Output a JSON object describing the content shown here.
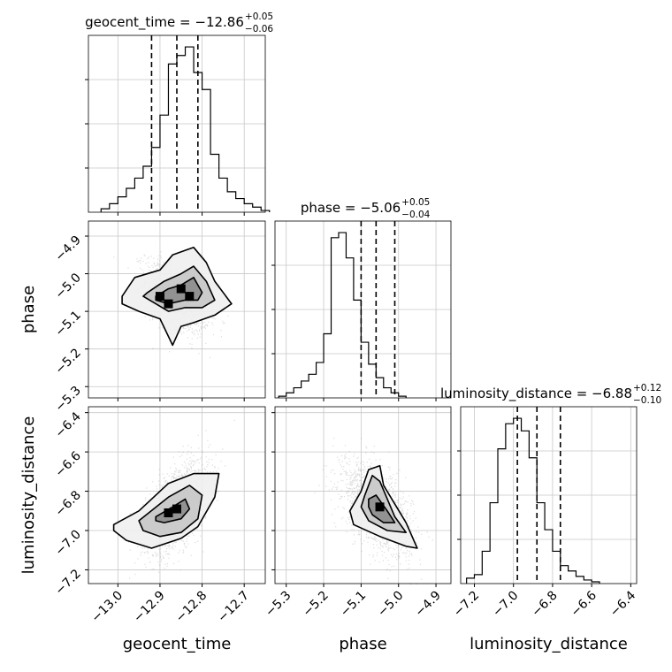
{
  "chart_data": {
    "type": "corner",
    "parameters": [
      {
        "name": "geocent_time",
        "range": [
          -13.07,
          -12.65
        ],
        "ticks": [
          -13.0,
          -12.9,
          -12.8,
          -12.7
        ],
        "tick_labels": [
          "−13.0",
          "−12.9",
          "−12.8",
          "−12.7"
        ]
      },
      {
        "name": "phase",
        "range": [
          -5.33,
          -4.86
        ],
        "ticks": [
          -5.3,
          -5.2,
          -5.1,
          -5.0,
          -4.9
        ],
        "tick_labels": [
          "−5.3",
          "−5.2",
          "−5.1",
          "−5.0",
          "−4.9"
        ]
      },
      {
        "name": "luminosity_distance",
        "range": [
          -7.27,
          -6.37
        ],
        "ticks": [
          -7.2,
          -7.0,
          -6.8,
          -6.6,
          -6.4
        ],
        "tick_labels": [
          "−7.2",
          "−7.0",
          "−6.8",
          "−6.6",
          "−6.4"
        ]
      }
    ],
    "titles": [
      {
        "main": "geocent_time = −12.86",
        "sup": "+0.05",
        "sub": "−0.06"
      },
      {
        "main": "phase = −5.06",
        "sup": "+0.05",
        "sub": "−0.04"
      },
      {
        "main": "luminosity_distance = −6.88",
        "sup": "+0.12",
        "sub": "−0.10"
      }
    ],
    "quantiles": [
      [
        -12.92,
        -12.86,
        -12.81
      ],
      [
        -5.1,
        -5.06,
        -5.01
      ],
      [
        -6.98,
        -6.88,
        -6.76
      ]
    ],
    "histograms": [
      {
        "bin_start": -13.04,
        "bin_width": 0.02,
        "counts": [
          2,
          5,
          9,
          14,
          20,
          27,
          38,
          57,
          87,
          92,
          97,
          82,
          72,
          34,
          20,
          12,
          8,
          5,
          3,
          1
        ]
      },
      {
        "bin_start": -5.32,
        "bin_width": 0.02,
        "counts": [
          1,
          3,
          6,
          10,
          14,
          21,
          38,
          95,
          98,
          83,
          58,
          33,
          20,
          12,
          6,
          3,
          1
        ]
      },
      {
        "bin_start": -7.24,
        "bin_width": 0.04,
        "counts": [
          3,
          5,
          18,
          45,
          75,
          89,
          92,
          85,
          70,
          45,
          30,
          18,
          10,
          7,
          4,
          2,
          1
        ]
      }
    ],
    "scatter_shape": [
      {
        "pair": [
          0,
          1
        ],
        "cov": [
          [
            0.0014,
            -0.0008
          ],
          [
            -0.0008,
            0.0021
          ]
        ]
      },
      {
        "pair": [
          0,
          2
        ],
        "cov": [
          [
            0.0014,
            0.0024
          ],
          [
            0.0024,
            0.0135
          ]
        ]
      },
      {
        "pair": [
          1,
          2
        ],
        "cov": [
          [
            0.0021,
            -0.0028
          ],
          [
            -0.0028,
            0.0135
          ]
        ]
      }
    ],
    "contours": [
      {
        "pair": [
          0,
          1
        ],
        "levels": [
          [
            [
              -12.99,
              -5.06
            ],
            [
              -12.96,
              -5.01
            ],
            [
              -12.9,
              -4.99
            ],
            [
              -12.87,
              -4.95
            ],
            [
              -12.82,
              -4.93
            ],
            [
              -12.79,
              -4.97
            ],
            [
              -12.77,
              -5.02
            ],
            [
              -12.73,
              -5.08
            ],
            [
              -12.77,
              -5.11
            ],
            [
              -12.82,
              -5.13
            ],
            [
              -12.85,
              -5.14
            ],
            [
              -12.87,
              -5.19
            ],
            [
              -12.9,
              -5.12
            ],
            [
              -12.95,
              -5.1
            ],
            [
              -12.99,
              -5.08
            ]
          ],
          [
            [
              -12.93,
              -5.05
            ],
            [
              -12.89,
              -5.02
            ],
            [
              -12.85,
              -5.0
            ],
            [
              -12.82,
              -4.98
            ],
            [
              -12.79,
              -5.02
            ],
            [
              -12.77,
              -5.07
            ],
            [
              -12.8,
              -5.09
            ],
            [
              -12.84,
              -5.09
            ],
            [
              -12.88,
              -5.1
            ],
            [
              -12.91,
              -5.08
            ],
            [
              -12.94,
              -5.06
            ]
          ],
          [
            [
              -12.91,
              -5.06
            ],
            [
              -12.88,
              -5.04
            ],
            [
              -12.85,
              -5.03
            ],
            [
              -12.82,
              -5.01
            ],
            [
              -12.8,
              -5.05
            ],
            [
              -12.81,
              -5.07
            ],
            [
              -12.84,
              -5.07
            ],
            [
              -12.88,
              -5.08
            ],
            [
              -12.91,
              -5.07
            ]
          ]
        ]
      },
      {
        "pair": [
          0,
          2
        ],
        "levels": [
          [
            [
              -13.01,
              -6.97
            ],
            [
              -12.95,
              -6.9
            ],
            [
              -12.88,
              -6.76
            ],
            [
              -12.82,
              -6.71
            ],
            [
              -12.76,
              -6.71
            ],
            [
              -12.77,
              -6.83
            ],
            [
              -12.81,
              -6.98
            ],
            [
              -12.85,
              -7.04
            ],
            [
              -12.92,
              -7.09
            ],
            [
              -12.98,
              -7.05
            ],
            [
              -13.01,
              -7.0
            ]
          ],
          [
            [
              -12.95,
              -6.95
            ],
            [
              -12.88,
              -6.83
            ],
            [
              -12.83,
              -6.77
            ],
            [
              -12.8,
              -6.82
            ],
            [
              -12.81,
              -6.94
            ],
            [
              -12.85,
              -7.01
            ],
            [
              -12.9,
              -7.03
            ],
            [
              -12.94,
              -7.0
            ]
          ],
          [
            [
              -12.91,
              -6.93
            ],
            [
              -12.87,
              -6.88
            ],
            [
              -12.84,
              -6.84
            ],
            [
              -12.83,
              -6.89
            ],
            [
              -12.85,
              -6.94
            ],
            [
              -12.89,
              -6.96
            ],
            [
              -12.91,
              -6.95
            ]
          ]
        ]
      },
      {
        "pair": [
          1,
          2
        ],
        "levels": [
          [
            [
              -5.1,
              -6.8
            ],
            [
              -5.08,
              -6.69
            ],
            [
              -5.05,
              -6.67
            ],
            [
              -5.04,
              -6.77
            ],
            [
              -4.98,
              -6.96
            ],
            [
              -4.95,
              -7.09
            ],
            [
              -4.98,
              -7.08
            ],
            [
              -5.05,
              -7.03
            ],
            [
              -5.12,
              -6.97
            ],
            [
              -5.13,
              -6.9
            ]
          ],
          [
            [
              -5.09,
              -6.82
            ],
            [
              -5.07,
              -6.72
            ],
            [
              -5.05,
              -6.75
            ],
            [
              -5.01,
              -6.93
            ],
            [
              -4.98,
              -7.01
            ],
            [
              -5.03,
              -7.0
            ],
            [
              -5.08,
              -6.95
            ],
            [
              -5.1,
              -6.88
            ]
          ],
          [
            [
              -5.08,
              -6.84
            ],
            [
              -5.06,
              -6.82
            ],
            [
              -5.03,
              -6.9
            ],
            [
              -5.01,
              -6.96
            ],
            [
              -5.04,
              -6.96
            ],
            [
              -5.07,
              -6.92
            ],
            [
              -5.08,
              -6.88
            ]
          ]
        ]
      }
    ],
    "hot_cells": [
      {
        "pair": [
          0,
          1
        ],
        "cells": [
          [
            -12.85,
            -5.04
          ],
          [
            -12.83,
            -5.06
          ],
          [
            -12.9,
            -5.06
          ],
          [
            -12.88,
            -5.08
          ]
        ]
      },
      {
        "pair": [
          0,
          2
        ],
        "cells": [
          [
            -12.88,
            -6.91
          ],
          [
            -12.86,
            -6.89
          ]
        ]
      },
      {
        "pair": [
          1,
          2
        ],
        "cells": [
          [
            -5.05,
            -6.88
          ]
        ]
      }
    ],
    "grid": true,
    "axis_labels": [
      "geocent_time",
      "phase",
      "luminosity_distance"
    ]
  }
}
